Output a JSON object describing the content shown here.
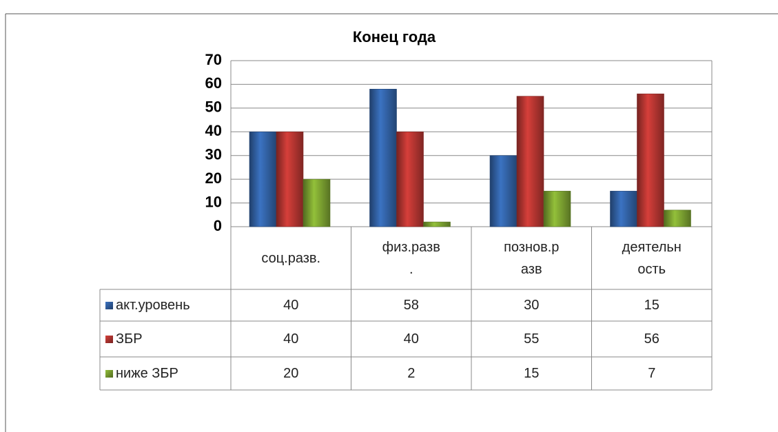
{
  "chart_data": {
    "type": "bar",
    "title": "Конец года",
    "categories": [
      "соц.разв.",
      "физ.разв.",
      "познов.разв",
      "деятельность"
    ],
    "series": [
      {
        "name": "акт.уровень",
        "color": "#3b73c2",
        "values": [
          40,
          58,
          30,
          15
        ]
      },
      {
        "name": "ЗБР",
        "color": "#d63f3a",
        "values": [
          40,
          40,
          55,
          56
        ]
      },
      {
        "name": "ниже ЗБР",
        "color": "#93c03a",
        "values": [
          20,
          2,
          15,
          7
        ]
      }
    ],
    "ylim": [
      0,
      70
    ],
    "yticks": [
      0,
      10,
      20,
      30,
      40,
      50,
      60,
      70
    ],
    "grid": true
  }
}
